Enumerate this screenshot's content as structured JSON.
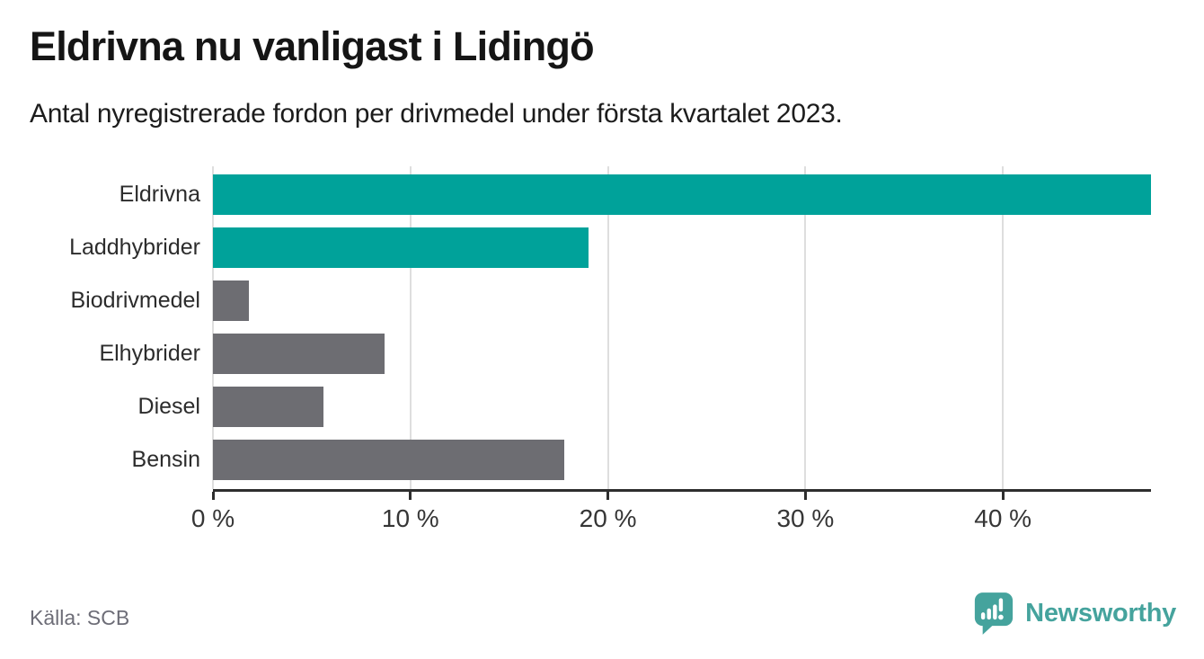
{
  "header": {
    "title": "Eldrivna nu vanligast i Lidingö",
    "subtitle": "Antal nyregistrerade fordon per drivmedel under första kvartalet 2023."
  },
  "chart_data": {
    "type": "bar",
    "orientation": "horizontal",
    "title": "Eldrivna nu vanligast i Lidingö",
    "subtitle": "Antal nyregistrerade fordon per drivmedel under första kvartalet 2023.",
    "categories": [
      "Eldrivna",
      "Laddhybrider",
      "Biodrivmedel",
      "Elhybrider",
      "Diesel",
      "Bensin"
    ],
    "values": [
      47.5,
      19.0,
      1.8,
      8.7,
      5.6,
      17.8
    ],
    "unit": "%",
    "bar_colors": [
      "#00a29a",
      "#00a29a",
      "#6d6d72",
      "#6d6d72",
      "#6d6d72",
      "#6d6d72"
    ],
    "xlim": [
      0,
      47.5
    ],
    "x_ticks": [
      {
        "value": 0,
        "label": "0 %"
      },
      {
        "value": 10,
        "label": "10 %"
      },
      {
        "value": 20,
        "label": "20 %"
      },
      {
        "value": 30,
        "label": "30 %"
      },
      {
        "value": 40,
        "label": "40 %"
      }
    ],
    "grid": "vertical-light",
    "legend": "none"
  },
  "footer": {
    "source": "Källa: SCB",
    "brand": "Newsworthy"
  },
  "colors": {
    "highlight": "#00a29a",
    "neutral": "#6d6d72",
    "grid": "#dedede",
    "axis": "#2e2e2e",
    "title": "#151515",
    "subtitle": "#1c1c1c",
    "category_label": "#2c2c2c",
    "tick_label": "#363636",
    "source": "#6d6d77",
    "logo": "#45a39d"
  },
  "icons": {
    "brand_icon": "newsworthy-speech-bubble-bar-chart-icon"
  }
}
